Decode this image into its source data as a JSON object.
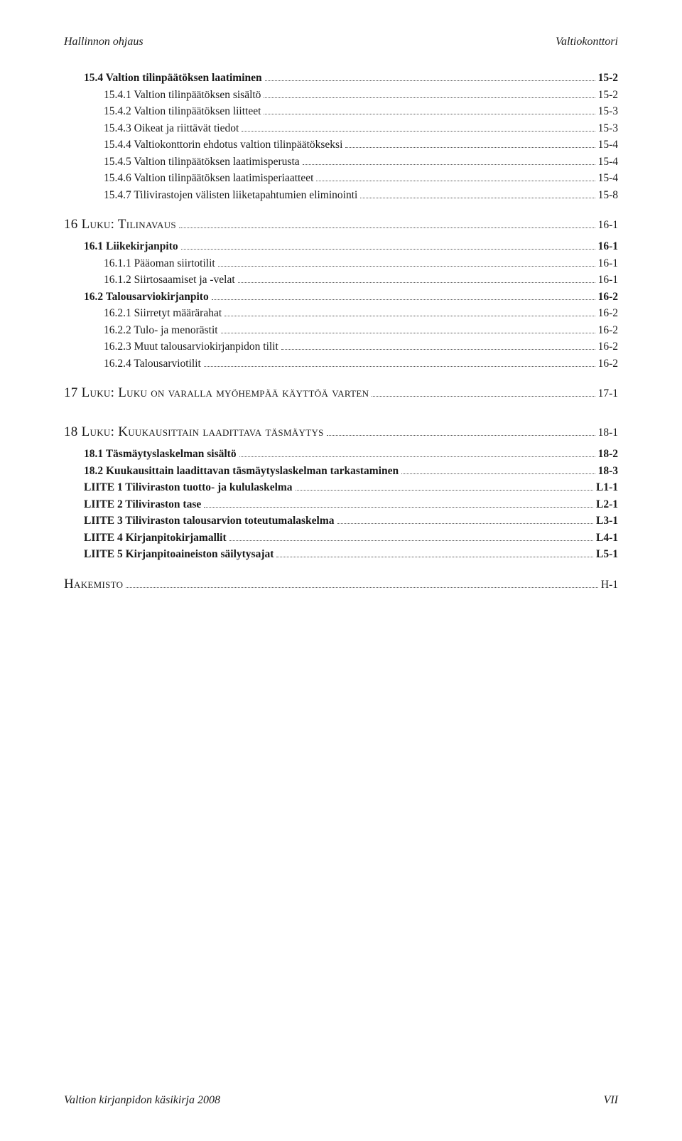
{
  "header": {
    "left": "Hallinnon ohjaus",
    "right": "Valtiokonttori"
  },
  "footer": {
    "left": "Valtion kirjanpidon käsikirja 2008",
    "right": "VII"
  },
  "toc": [
    {
      "label": "15.4 Valtion tilinpäätöksen laatiminen",
      "page": "15-2",
      "indent": 1,
      "bold": true
    },
    {
      "label": "15.4.1 Valtion tilinpäätöksen sisältö",
      "page": "15-2",
      "indent": 2
    },
    {
      "label": "15.4.2 Valtion tilinpäätöksen liitteet",
      "page": "15-3",
      "indent": 2
    },
    {
      "label": "15.4.3 Oikeat ja riittävät tiedot",
      "page": "15-3",
      "indent": 2
    },
    {
      "label": "15.4.4 Valtiokonttorin ehdotus valtion tilinpäätökseksi",
      "page": "15-4",
      "indent": 2
    },
    {
      "label": "15.4.5 Valtion tilinpäätöksen laatimisperusta",
      "page": "15-4",
      "indent": 2
    },
    {
      "label": "15.4.6 Valtion tilinpäätöksen laatimisperiaatteet",
      "page": "15-4",
      "indent": 2
    },
    {
      "label": "15.4.7 Tilivirastojen välisten liiketapahtumien eliminointi",
      "page": "15-8",
      "indent": 2
    },
    {
      "gap": "md"
    },
    {
      "label": "16 Luku: Tilinavaus",
      "page": "16-1",
      "indent": 0,
      "sc": true
    },
    {
      "gap": "sm"
    },
    {
      "label": "16.1 Liikekirjanpito",
      "page": "16-1",
      "indent": 1,
      "bold": true
    },
    {
      "label": "16.1.1 Pääoman siirtotilit",
      "page": "16-1",
      "indent": 2
    },
    {
      "label": "16.1.2 Siirtosaamiset ja -velat",
      "page": "16-1",
      "indent": 2
    },
    {
      "label": "16.2 Talousarviokirjanpito",
      "page": "16-2",
      "indent": 1,
      "bold": true
    },
    {
      "label": "16.2.1 Siirretyt määrärahat",
      "page": "16-2",
      "indent": 2
    },
    {
      "label": "16.2.2 Tulo- ja menorästit",
      "page": "16-2",
      "indent": 2
    },
    {
      "label": "16.2.3 Muut talousarviokirjanpidon tilit",
      "page": "16-2",
      "indent": 2
    },
    {
      "label": "16.2.4 Talousarviotilit",
      "page": "16-2",
      "indent": 2
    },
    {
      "gap": "md"
    },
    {
      "label": "17 Luku: Luku on varalla myöhempää käyttöä varten",
      "page": "17-1",
      "indent": 0,
      "sc": true
    },
    {
      "gap": "lg"
    },
    {
      "label": "18 Luku: Kuukausittain laadittava täsmäytys",
      "page": "18-1",
      "indent": 0,
      "sc": true
    },
    {
      "gap": "sm"
    },
    {
      "label": "18.1 Täsmäytyslaskelman sisältö",
      "page": "18-2",
      "indent": 1,
      "bold": true
    },
    {
      "label": "18.2 Kuukausittain laadittavan täsmäytyslaskelman tarkastaminen",
      "page": "18-3",
      "indent": 1,
      "bold": true
    },
    {
      "label": "LIITE 1 Tiliviraston tuotto- ja kululaskelma",
      "page": "L1-1",
      "indent": 1,
      "bold": true
    },
    {
      "label": "LIITE 2 Tiliviraston tase",
      "page": "L2-1",
      "indent": 1,
      "bold": true
    },
    {
      "label": "LIITE 3 Tiliviraston talousarvion toteutumalaskelma",
      "page": "L3-1",
      "indent": 1,
      "bold": true
    },
    {
      "label": "LIITE 4 Kirjanpitokirjamallit",
      "page": "L4-1",
      "indent": 1,
      "bold": true
    },
    {
      "label": "LIITE 5 Kirjanpitoaineiston säilytysajat",
      "page": "L5-1",
      "indent": 1,
      "bold": true
    },
    {
      "gap": "md"
    },
    {
      "label": "Hakemisto",
      "page": "H-1",
      "indent": 0,
      "sc": true
    }
  ]
}
